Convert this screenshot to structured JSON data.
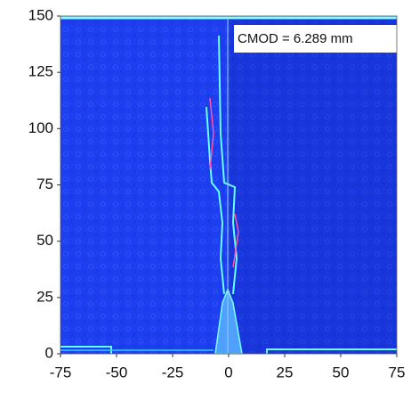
{
  "chart_data": {
    "type": "image",
    "annotation": "CMOD = 6.289 mm",
    "xlim": [
      -75,
      75
    ],
    "xticks": [
      -75,
      -50,
      -25,
      0,
      25,
      50,
      75
    ],
    "ylim": [
      0,
      150
    ],
    "yticks": [
      0,
      25,
      50,
      75,
      100,
      125,
      150
    ],
    "color": "#1e3ff0"
  }
}
